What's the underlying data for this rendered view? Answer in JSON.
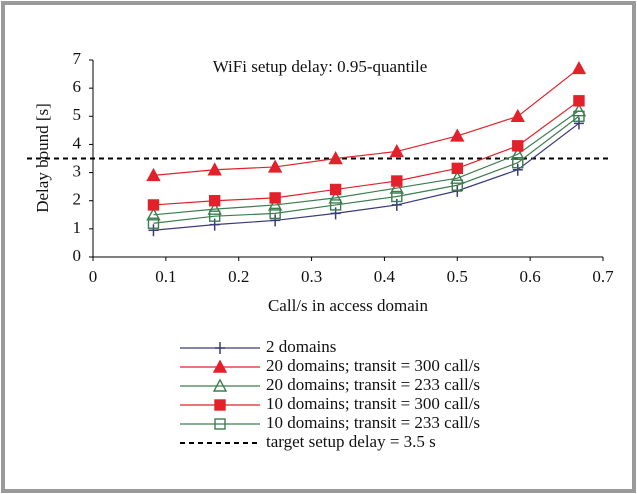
{
  "chart_data": {
    "type": "line",
    "annotation": "WiFi setup delay: 0.95-quantile",
    "x_label": "Call/s in access domain",
    "y_label": "Delay bound [s]",
    "x": [
      0.083,
      0.167,
      0.25,
      0.333,
      0.417,
      0.5,
      0.583,
      0.667
    ],
    "xlim": [
      0,
      0.7
    ],
    "xticks": [
      0,
      0.1,
      0.2,
      0.3,
      0.4,
      0.5,
      0.6,
      0.7
    ],
    "ylim": [
      0,
      7
    ],
    "yticks": [
      0,
      1,
      2,
      3,
      4,
      5,
      6,
      7
    ],
    "series": [
      {
        "name": "2 domains",
        "color": "#3b3b78",
        "marker": "plus",
        "filled": true,
        "values": [
          0.95,
          1.15,
          1.3,
          1.55,
          1.85,
          2.35,
          3.1,
          4.75
        ]
      },
      {
        "name": "20 domains; transit = 300 call/s",
        "color": "#e3212b",
        "marker": "triangle",
        "filled": true,
        "values": [
          2.9,
          3.1,
          3.2,
          3.5,
          3.75,
          4.3,
          5.0,
          6.7
        ]
      },
      {
        "name": "20 domains; transit = 233 call/s",
        "color": "#3d7d4f",
        "marker": "triangle",
        "filled": false,
        "values": [
          1.5,
          1.7,
          1.85,
          2.1,
          2.45,
          2.8,
          3.65,
          5.2
        ]
      },
      {
        "name": "10 domains; transit = 300 call/s",
        "color": "#e3212b",
        "marker": "square",
        "filled": true,
        "values": [
          1.85,
          2.0,
          2.1,
          2.4,
          2.7,
          3.15,
          3.95,
          5.55
        ]
      },
      {
        "name": "10 domains; transit = 233 call/s",
        "color": "#3d7d4f",
        "marker": "square",
        "filled": false,
        "values": [
          1.2,
          1.45,
          1.55,
          1.85,
          2.15,
          2.55,
          3.35,
          5.0
        ]
      }
    ],
    "target": {
      "name": "target setup delay = 3.5 s",
      "color": "#000000",
      "value": 3.5
    }
  }
}
